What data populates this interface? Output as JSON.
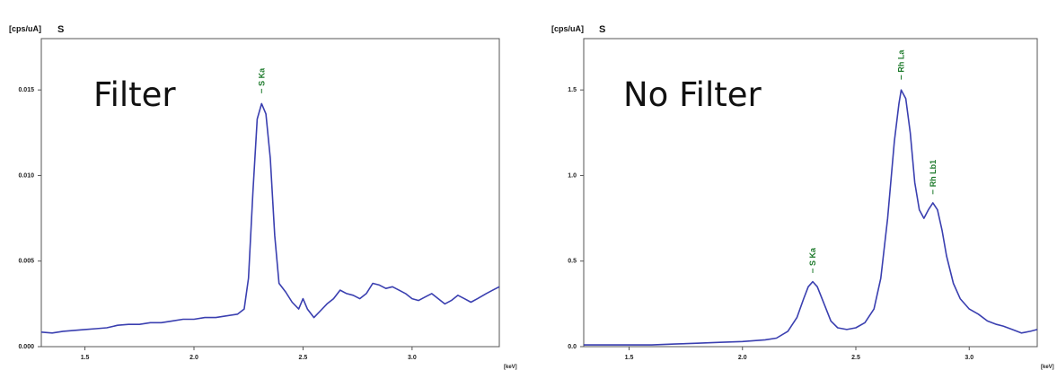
{
  "chart_data": [
    {
      "type": "line",
      "title": "Filter",
      "ylabel": "[cps/uA]",
      "element": "S",
      "xlabel": "[keV]",
      "xlim": [
        1.3,
        3.4
      ],
      "ylim": [
        0,
        0.018
      ],
      "xticks": [
        1.5,
        2.0,
        2.5,
        3.0
      ],
      "xtick_labels": [
        "1.5",
        "2.0",
        "2.5",
        "3.0"
      ],
      "yticks": [
        0,
        0.005,
        0.01,
        0.015
      ],
      "ytick_labels": [
        "0.000",
        "0.005",
        "0.010",
        "0.015"
      ],
      "peaks": [
        {
          "label": "S Ka",
          "x": 2.31,
          "y": 0.0147
        }
      ],
      "series": [
        {
          "color": "#3a3fb0",
          "points": [
            [
              1.3,
              0.00085
            ],
            [
              1.35,
              0.0008
            ],
            [
              1.4,
              0.0009
            ],
            [
              1.45,
              0.00095
            ],
            [
              1.5,
              0.001
            ],
            [
              1.55,
              0.00105
            ],
            [
              1.6,
              0.0011
            ],
            [
              1.65,
              0.00125
            ],
            [
              1.7,
              0.0013
            ],
            [
              1.75,
              0.0013
            ],
            [
              1.8,
              0.0014
            ],
            [
              1.85,
              0.0014
            ],
            [
              1.9,
              0.0015
            ],
            [
              1.95,
              0.0016
            ],
            [
              2.0,
              0.0016
            ],
            [
              2.05,
              0.0017
            ],
            [
              2.1,
              0.0017
            ],
            [
              2.15,
              0.0018
            ],
            [
              2.2,
              0.0019
            ],
            [
              2.23,
              0.0022
            ],
            [
              2.25,
              0.004
            ],
            [
              2.27,
              0.009
            ],
            [
              2.29,
              0.0133
            ],
            [
              2.31,
              0.0142
            ],
            [
              2.33,
              0.0136
            ],
            [
              2.35,
              0.011
            ],
            [
              2.37,
              0.0065
            ],
            [
              2.39,
              0.0037
            ],
            [
              2.42,
              0.0032
            ],
            [
              2.45,
              0.0026
            ],
            [
              2.48,
              0.0022
            ],
            [
              2.5,
              0.0028
            ],
            [
              2.52,
              0.0022
            ],
            [
              2.55,
              0.0017
            ],
            [
              2.58,
              0.0021
            ],
            [
              2.61,
              0.0025
            ],
            [
              2.64,
              0.0028
            ],
            [
              2.67,
              0.0033
            ],
            [
              2.7,
              0.0031
            ],
            [
              2.73,
              0.003
            ],
            [
              2.76,
              0.0028
            ],
            [
              2.79,
              0.0031
            ],
            [
              2.82,
              0.0037
            ],
            [
              2.85,
              0.0036
            ],
            [
              2.88,
              0.0034
            ],
            [
              2.91,
              0.0035
            ],
            [
              2.94,
              0.0033
            ],
            [
              2.97,
              0.0031
            ],
            [
              3.0,
              0.0028
            ],
            [
              3.03,
              0.0027
            ],
            [
              3.06,
              0.0029
            ],
            [
              3.09,
              0.0031
            ],
            [
              3.12,
              0.0028
            ],
            [
              3.15,
              0.0025
            ],
            [
              3.18,
              0.0027
            ],
            [
              3.21,
              0.003
            ],
            [
              3.24,
              0.0028
            ],
            [
              3.27,
              0.0026
            ],
            [
              3.3,
              0.0028
            ],
            [
              3.34,
              0.0031
            ],
            [
              3.37,
              0.0033
            ],
            [
              3.4,
              0.0035
            ]
          ]
        }
      ]
    },
    {
      "type": "line",
      "title": "No Filter",
      "ylabel": "[cps/uA]",
      "element": "S",
      "xlabel": "[keV]",
      "xlim": [
        1.3,
        3.3
      ],
      "ylim": [
        0,
        1.8
      ],
      "xticks": [
        1.5,
        2.0,
        2.5,
        3.0
      ],
      "xtick_labels": [
        "1.5",
        "2.0",
        "2.5",
        "3.0"
      ],
      "yticks": [
        0,
        0.5,
        1.0,
        1.5
      ],
      "ytick_labels": [
        "0.0",
        "0.5",
        "1.0",
        "1.5"
      ],
      "peaks": [
        {
          "label": "S Ka",
          "x": 2.31,
          "y": 0.42
        },
        {
          "label": "Rh La",
          "x": 2.7,
          "y": 1.55
        },
        {
          "label": "Rh Lb1",
          "x": 2.84,
          "y": 0.88
        }
      ],
      "series": [
        {
          "color": "#3a3fb0",
          "points": [
            [
              1.3,
              0.01
            ],
            [
              1.4,
              0.01
            ],
            [
              1.5,
              0.01
            ],
            [
              1.6,
              0.01
            ],
            [
              1.7,
              0.015
            ],
            [
              1.8,
              0.02
            ],
            [
              1.9,
              0.025
            ],
            [
              2.0,
              0.03
            ],
            [
              2.1,
              0.04
            ],
            [
              2.15,
              0.05
            ],
            [
              2.2,
              0.09
            ],
            [
              2.24,
              0.17
            ],
            [
              2.27,
              0.28
            ],
            [
              2.29,
              0.35
            ],
            [
              2.31,
              0.38
            ],
            [
              2.33,
              0.35
            ],
            [
              2.36,
              0.25
            ],
            [
              2.39,
              0.15
            ],
            [
              2.42,
              0.11
            ],
            [
              2.46,
              0.1
            ],
            [
              2.5,
              0.11
            ],
            [
              2.54,
              0.14
            ],
            [
              2.58,
              0.22
            ],
            [
              2.61,
              0.4
            ],
            [
              2.64,
              0.75
            ],
            [
              2.67,
              1.2
            ],
            [
              2.69,
              1.42
            ],
            [
              2.7,
              1.5
            ],
            [
              2.72,
              1.45
            ],
            [
              2.74,
              1.25
            ],
            [
              2.76,
              0.96
            ],
            [
              2.78,
              0.8
            ],
            [
              2.8,
              0.75
            ],
            [
              2.82,
              0.8
            ],
            [
              2.84,
              0.84
            ],
            [
              2.86,
              0.8
            ],
            [
              2.88,
              0.68
            ],
            [
              2.9,
              0.53
            ],
            [
              2.93,
              0.37
            ],
            [
              2.96,
              0.28
            ],
            [
              3.0,
              0.22
            ],
            [
              3.04,
              0.19
            ],
            [
              3.08,
              0.15
            ],
            [
              3.12,
              0.13
            ],
            [
              3.15,
              0.12
            ],
            [
              3.19,
              0.1
            ],
            [
              3.23,
              0.08
            ],
            [
              3.27,
              0.09
            ],
            [
              3.3,
              0.1
            ]
          ]
        }
      ]
    }
  ]
}
